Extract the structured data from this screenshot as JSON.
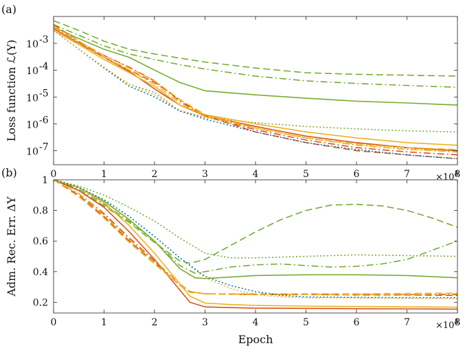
{
  "chart_data": [
    {
      "panel_label": "(a)",
      "type": "line",
      "yscale": "log",
      "ylabel": "Loss function ℒ(Y)",
      "xlim": [
        0,
        80000
      ],
      "ylim": [
        3e-08,
        0.01
      ],
      "x_ticks": [
        0,
        10000,
        20000,
        30000,
        40000,
        50000,
        60000,
        70000,
        80000
      ],
      "x_tick_labels": [
        "0",
        "1",
        "2",
        "3",
        "4",
        "5",
        "6",
        "7",
        "8"
      ],
      "x_multiplier": "×10",
      "x_multiplier_exp": "4",
      "y_ticks": [
        1e-07,
        1e-06,
        1e-05,
        0.0001,
        0.001
      ],
      "y_tick_labels": [
        {
          "base": "10",
          "exp": "-7"
        },
        {
          "base": "10",
          "exp": "-6"
        },
        {
          "base": "10",
          "exp": "-5"
        },
        {
          "base": "10",
          "exp": "-4"
        },
        {
          "base": "10",
          "exp": "-3"
        }
      ],
      "series": [
        {
          "color": "#77ac30",
          "dash": "solid",
          "x": [
            0,
            5000,
            10000,
            15000,
            20000,
            25000,
            30000,
            40000,
            50000,
            60000,
            70000,
            80000
          ],
          "y": [
            0.004,
            0.0015,
            0.0006,
            0.0003,
            0.0001,
            3.5e-05,
            1.7e-05,
            1.2e-05,
            9e-06,
            7e-06,
            6e-06,
            5e-06
          ]
        },
        {
          "color": "#77ac30",
          "dash": "dashed",
          "x": [
            0,
            5000,
            10000,
            15000,
            20000,
            25000,
            30000,
            40000,
            50000,
            60000,
            70000,
            80000
          ],
          "y": [
            0.007,
            0.003,
            0.0012,
            0.0006,
            0.0004,
            0.00028,
            0.0002,
            0.00012,
            8e-05,
            7e-05,
            6.5e-05,
            6e-05
          ]
        },
        {
          "color": "#77ac30",
          "dash": "dashdot",
          "x": [
            0,
            5000,
            10000,
            15000,
            20000,
            25000,
            30000,
            40000,
            50000,
            60000,
            70000,
            80000
          ],
          "y": [
            0.005,
            0.002,
            0.0008,
            0.0004,
            0.00025,
            0.00016,
            0.00011,
            6e-05,
            4e-05,
            3.2e-05,
            2.7e-05,
            2.3e-05
          ]
        },
        {
          "color": "#77ac30",
          "dash": "dotted",
          "x": [
            0,
            5000,
            10000,
            15000,
            20000,
            25000,
            30000,
            40000,
            50000,
            60000,
            70000,
            80000
          ],
          "y": [
            0.003,
            0.0006,
            0.00012,
            3e-05,
            1.5e-05,
            3e-06,
            1.8e-06,
            1.1e-06,
            8e-07,
            6.5e-07,
            5.5e-07,
            5e-07
          ]
        },
        {
          "color": "#d95319",
          "dash": "solid",
          "x": [
            0,
            5000,
            10000,
            15000,
            20000,
            25000,
            30000,
            40000,
            50000,
            60000,
            70000,
            80000
          ],
          "y": [
            0.0035,
            0.001,
            0.0003,
            9e-05,
            2e-05,
            5e-06,
            2e-06,
            8e-07,
            3.5e-07,
            2e-07,
            1.3e-07,
            1e-07
          ]
        },
        {
          "color": "#d95319",
          "dash": "dashed",
          "x": [
            0,
            5000,
            10000,
            15000,
            20000,
            25000,
            30000,
            40000,
            50000,
            60000,
            70000,
            80000
          ],
          "y": [
            0.005,
            0.0012,
            0.0003,
            0.0001,
            3.5e-05,
            8e-06,
            2e-06,
            5e-07,
            2e-07,
            1e-07,
            7e-08,
            5e-08
          ]
        },
        {
          "color": "#d95319",
          "dash": "dashdot",
          "x": [
            0,
            5000,
            10000,
            15000,
            20000,
            25000,
            30000,
            40000,
            50000,
            60000,
            70000,
            80000
          ],
          "y": [
            0.004,
            0.0011,
            0.00035,
            0.00013,
            4e-05,
            7e-06,
            2e-06,
            6e-07,
            2.5e-07,
            1.3e-07,
            9e-08,
            7e-08
          ]
        },
        {
          "color": "#edb120",
          "dash": "solid",
          "x": [
            0,
            5000,
            10000,
            15000,
            20000,
            25000,
            30000,
            40000,
            50000,
            60000,
            70000,
            80000
          ],
          "y": [
            0.003,
            0.0009,
            0.00025,
            8e-05,
            2.5e-05,
            5e-06,
            2.2e-06,
            1e-06,
            5e-07,
            3e-07,
            2e-07,
            1.6e-07
          ]
        },
        {
          "color": "#edb120",
          "dash": "dashed",
          "x": [
            0,
            5000,
            10000,
            15000,
            20000,
            25000,
            30000,
            40000,
            50000,
            60000,
            70000,
            80000
          ],
          "y": [
            0.0045,
            0.0012,
            0.00035,
            0.00012,
            4e-05,
            8e-06,
            2.2e-06,
            7e-07,
            3e-07,
            1.8e-07,
            1.3e-07,
            1.1e-07
          ]
        },
        {
          "color": "#edb120",
          "dash": "dashdot",
          "x": [
            0,
            5000,
            10000,
            15000,
            20000,
            25000,
            30000,
            40000,
            50000,
            60000,
            70000,
            80000
          ],
          "y": [
            0.004,
            0.001,
            0.0003,
            0.0001,
            3e-05,
            6e-06,
            2e-06,
            7e-07,
            3e-07,
            1.6e-07,
            1.1e-07,
            9e-08
          ]
        },
        {
          "color": "#0072bd",
          "dash": "dotted",
          "x": [
            0,
            5000,
            10000,
            15000,
            20000,
            25000,
            30000,
            40000,
            50000,
            60000,
            70000,
            80000
          ],
          "y": [
            0.003,
            0.0006,
            0.00012,
            2.5e-05,
            1e-05,
            3e-06,
            1.5e-06,
            5e-07,
            2e-07,
            1.1e-07,
            7e-08,
            5e-08
          ]
        },
        {
          "color": "#edb120",
          "dash": "dotted",
          "x": [
            0,
            5000,
            10000,
            15000,
            20000,
            25000,
            30000,
            40000,
            50000,
            60000,
            70000,
            80000
          ],
          "y": [
            0.003,
            0.0006,
            0.00013,
            3e-05,
            1.2e-05,
            3.2e-06,
            1.7e-06,
            7e-07,
            3e-07,
            1.7e-07,
            1.2e-07,
            9e-08
          ]
        }
      ]
    },
    {
      "panel_label": "(b)",
      "type": "line",
      "ylabel": "Adm. Rec. Err. ΔY",
      "xlabel": "Epoch",
      "xlim": [
        0,
        80000
      ],
      "ylim": [
        0.13,
        1.0
      ],
      "x_ticks": [
        0,
        10000,
        20000,
        30000,
        40000,
        50000,
        60000,
        70000,
        80000
      ],
      "x_tick_labels": [
        "0",
        "1",
        "2",
        "3",
        "4",
        "5",
        "6",
        "7",
        "8"
      ],
      "x_multiplier": "×10",
      "x_multiplier_exp": "4",
      "y_ticks": [
        0.2,
        0.4,
        0.6,
        0.8,
        1.0
      ],
      "y_tick_labels": [
        "0.2",
        "0.4",
        "0.6",
        "0.8",
        "1"
      ],
      "series": [
        {
          "color": "#77ac30",
          "dash": "solid",
          "x": [
            0,
            5000,
            10000,
            15000,
            20000,
            25000,
            28000,
            30000,
            40000,
            50000,
            60000,
            70000,
            80000
          ],
          "y": [
            1.0,
            0.95,
            0.86,
            0.74,
            0.6,
            0.42,
            0.36,
            0.355,
            0.375,
            0.38,
            0.38,
            0.375,
            0.36
          ]
        },
        {
          "color": "#77ac30",
          "dash": "dashed",
          "x": [
            0,
            5000,
            10000,
            15000,
            20000,
            25000,
            27000,
            30000,
            35000,
            40000,
            45000,
            50000,
            55000,
            60000,
            65000,
            70000,
            75000,
            80000
          ],
          "y": [
            1.0,
            0.93,
            0.83,
            0.72,
            0.59,
            0.47,
            0.455,
            0.48,
            0.57,
            0.66,
            0.74,
            0.8,
            0.835,
            0.84,
            0.83,
            0.8,
            0.75,
            0.69
          ]
        },
        {
          "color": "#77ac30",
          "dash": "dashdot",
          "x": [
            0,
            5000,
            10000,
            15000,
            20000,
            25000,
            28000,
            30000,
            35000,
            40000,
            45000,
            50000,
            55000,
            60000,
            65000,
            70000,
            75000,
            80000
          ],
          "y": [
            1.0,
            0.94,
            0.84,
            0.73,
            0.6,
            0.44,
            0.39,
            0.4,
            0.43,
            0.445,
            0.45,
            0.44,
            0.43,
            0.435,
            0.45,
            0.48,
            0.54,
            0.6
          ]
        },
        {
          "color": "#77ac30",
          "dash": "dotted",
          "x": [
            0,
            5000,
            10000,
            15000,
            20000,
            25000,
            30000,
            35000,
            40000,
            50000,
            60000,
            70000,
            80000
          ],
          "y": [
            1.0,
            0.96,
            0.9,
            0.82,
            0.73,
            0.62,
            0.52,
            0.49,
            0.49,
            0.5,
            0.51,
            0.505,
            0.5
          ]
        },
        {
          "color": "#d95319",
          "dash": "solid",
          "x": [
            0,
            5000,
            10000,
            15000,
            20000,
            25000,
            27000,
            30000,
            35000,
            40000,
            50000,
            60000,
            70000,
            80000
          ],
          "y": [
            1.0,
            0.93,
            0.82,
            0.66,
            0.48,
            0.28,
            0.2,
            0.17,
            0.165,
            0.162,
            0.16,
            0.158,
            0.157,
            0.155
          ]
        },
        {
          "color": "#d95319",
          "dash": "dashed",
          "x": [
            0,
            5000,
            10000,
            15000,
            20000,
            25000,
            27000,
            30000,
            40000,
            50000,
            60000,
            70000,
            80000
          ],
          "y": [
            1.0,
            0.9,
            0.76,
            0.6,
            0.46,
            0.31,
            0.27,
            0.255,
            0.25,
            0.25,
            0.248,
            0.248,
            0.245
          ]
        },
        {
          "color": "#d95319",
          "dash": "dashdot",
          "x": [
            0,
            5000,
            10000,
            15000,
            20000,
            25000,
            27000,
            30000,
            40000,
            50000,
            60000,
            70000,
            80000
          ],
          "y": [
            1.0,
            0.91,
            0.78,
            0.62,
            0.47,
            0.32,
            0.27,
            0.255,
            0.252,
            0.25,
            0.25,
            0.25,
            0.25
          ]
        },
        {
          "color": "#edb120",
          "dash": "solid",
          "x": [
            0,
            5000,
            10000,
            15000,
            20000,
            25000,
            27000,
            30000,
            35000,
            40000,
            50000,
            60000,
            70000,
            80000
          ],
          "y": [
            1.0,
            0.95,
            0.85,
            0.7,
            0.52,
            0.32,
            0.24,
            0.195,
            0.185,
            0.18,
            0.175,
            0.172,
            0.17,
            0.168
          ]
        },
        {
          "color": "#edb120",
          "dash": "dashed",
          "x": [
            0,
            5000,
            10000,
            15000,
            20000,
            25000,
            27000,
            30000,
            40000,
            50000,
            60000,
            70000,
            80000
          ],
          "y": [
            1.0,
            0.89,
            0.75,
            0.59,
            0.45,
            0.31,
            0.265,
            0.255,
            0.255,
            0.255,
            0.255,
            0.258,
            0.26
          ]
        },
        {
          "color": "#edb120",
          "dash": "dashdot",
          "x": [
            0,
            5000,
            10000,
            15000,
            20000,
            25000,
            27000,
            30000,
            40000,
            50000,
            60000,
            70000,
            80000
          ],
          "y": [
            1.0,
            0.91,
            0.77,
            0.61,
            0.46,
            0.32,
            0.27,
            0.255,
            0.25,
            0.25,
            0.25,
            0.252,
            0.255
          ]
        },
        {
          "color": "#edb120",
          "dash": "dotted",
          "x": [
            0,
            5000,
            10000,
            15000,
            20000,
            25000,
            30000,
            35000,
            40000,
            45000,
            50000,
            60000,
            70000,
            80000
          ],
          "y": [
            1.0,
            0.95,
            0.87,
            0.76,
            0.63,
            0.49,
            0.36,
            0.29,
            0.25,
            0.235,
            0.23,
            0.228,
            0.226,
            0.225
          ]
        },
        {
          "color": "#0072bd",
          "dash": "dotted",
          "x": [
            0,
            5000,
            10000,
            15000,
            20000,
            25000,
            30000,
            35000,
            40000,
            45000,
            50000,
            60000,
            70000,
            80000
          ],
          "y": [
            1.0,
            0.95,
            0.87,
            0.76,
            0.63,
            0.49,
            0.37,
            0.31,
            0.27,
            0.245,
            0.235,
            0.232,
            0.23,
            0.23
          ]
        }
      ]
    }
  ]
}
